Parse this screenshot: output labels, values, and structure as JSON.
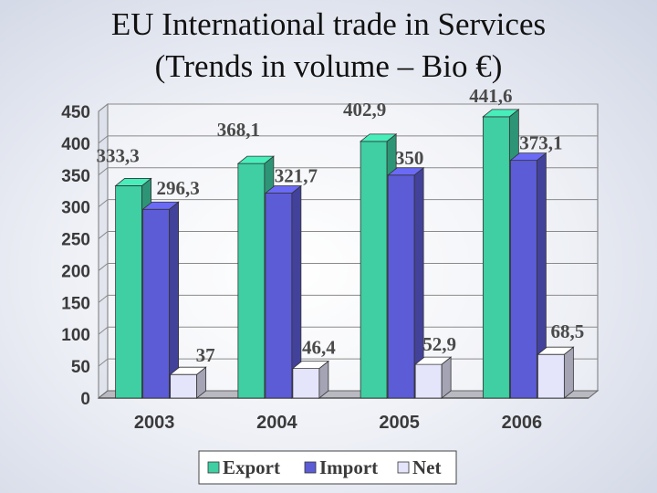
{
  "slide": {
    "title_line1": "EU International trade in Services",
    "title_line2": "(Trends in volume – Bio €)"
  },
  "chart_data": {
    "type": "bar",
    "categories": [
      "2003",
      "2004",
      "2005",
      "2006"
    ],
    "series": [
      {
        "name": "Export",
        "values": [
          333.3,
          368.1,
          402.9,
          441.6
        ],
        "labels": [
          "333,3",
          "368,1",
          "402,9",
          "441,6"
        ],
        "color": "#3fcfa2"
      },
      {
        "name": "Import",
        "values": [
          296.3,
          321.7,
          350,
          373.1
        ],
        "labels": [
          "296,3",
          "321,7",
          "350",
          "373,1"
        ],
        "color": "#5c5cd6"
      },
      {
        "name": "Net",
        "values": [
          37,
          46.4,
          52.9,
          68.5
        ],
        "labels": [
          "37",
          "46,4",
          "52,9",
          "68,5"
        ],
        "color": "#e4e4fb"
      }
    ],
    "yticks": [
      "0",
      "50",
      "100",
      "150",
      "200",
      "250",
      "300",
      "350",
      "400",
      "450"
    ],
    "ylim": [
      0,
      450
    ],
    "grid": true,
    "legend": "bottom"
  }
}
